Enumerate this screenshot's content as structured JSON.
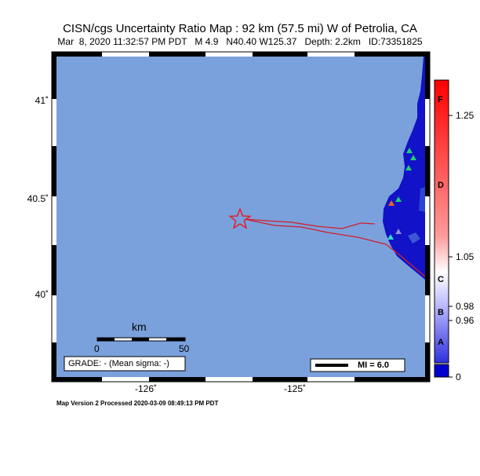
{
  "header": {
    "title": "CISN/cgs Uncertainty Ratio Map : 92 km (57.5 mi) W of Petrolia, CA",
    "subtitle": "Mar  8, 2020 11:32:57 PM PDT   M 4.9   N40.40 W125.37   Depth: 2.2km   ID:73351825"
  },
  "map": {
    "lat_labels": [
      "41˚",
      "40.5˚",
      "40˚"
    ],
    "lon_labels": [
      "-126˚",
      "-125˚"
    ],
    "scalebar": {
      "unit": "km",
      "start": "0",
      "end": "50"
    },
    "grade": "GRADE: - (Mean sigma: -)",
    "mi_legend": "MI = 6.0",
    "epicenter_icon": "star-icon",
    "colors": {
      "ocean": "#7aa1dc",
      "land": "#1212c8",
      "fault": "#d11e2c"
    }
  },
  "colorbar": {
    "letters": [
      "F",
      "D",
      "C",
      "B",
      "A"
    ],
    "ticks": [
      "1.25",
      "1.05",
      "0.98",
      "0.96",
      "0"
    ]
  },
  "footer": "Map Version 2 Processed 2020-03-09 08:49:13 PM PDT"
}
